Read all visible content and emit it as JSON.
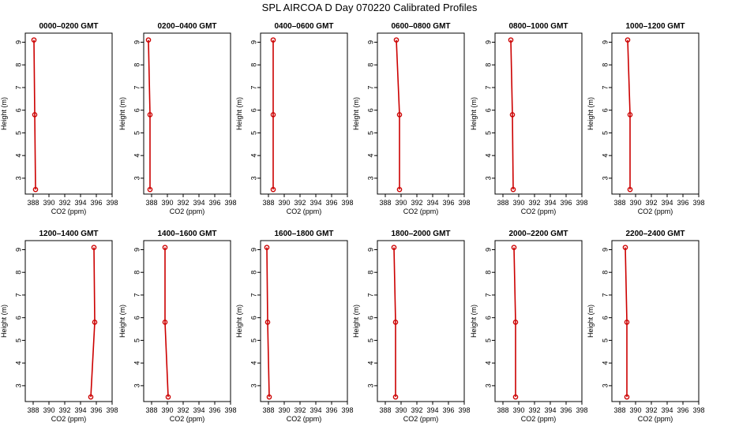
{
  "title": "SPL AIRCOA D  Day 070220  Calibrated Profiles",
  "xlabel": "CO2 (ppm)",
  "ylabel": "Height (m)",
  "colors": {
    "line": "#cc0000",
    "marker": "#cc0000"
  },
  "chart_data": [
    {
      "type": "line",
      "title": "0000–0200 GMT",
      "xlim": [
        387,
        398
      ],
      "ylim": [
        2.3,
        9.4
      ],
      "xticks": [
        "388",
        "390",
        "392",
        "394",
        "396",
        "398"
      ],
      "yticks": [
        "3",
        "4",
        "5",
        "6",
        "7",
        "8",
        "9"
      ],
      "points": [
        {
          "x": 388.3,
          "y": 2.5
        },
        {
          "x": 388.2,
          "y": 5.8
        },
        {
          "x": 388.1,
          "y": 9.1
        }
      ]
    },
    {
      "type": "line",
      "title": "0200–0400 GMT",
      "xlim": [
        387,
        398
      ],
      "ylim": [
        2.3,
        9.4
      ],
      "xticks": [
        "388",
        "390",
        "392",
        "394",
        "396",
        "398"
      ],
      "yticks": [
        "3",
        "4",
        "5",
        "6",
        "7",
        "8",
        "9"
      ],
      "points": [
        {
          "x": 387.8,
          "y": 2.5
        },
        {
          "x": 387.8,
          "y": 5.8
        },
        {
          "x": 387.6,
          "y": 9.1
        }
      ]
    },
    {
      "type": "line",
      "title": "0400–0600 GMT",
      "xlim": [
        387,
        398
      ],
      "ylim": [
        2.3,
        9.4
      ],
      "xticks": [
        "388",
        "390",
        "392",
        "394",
        "396",
        "398"
      ],
      "yticks": [
        "3",
        "4",
        "5",
        "6",
        "7",
        "8",
        "9"
      ],
      "points": [
        {
          "x": 388.6,
          "y": 2.5
        },
        {
          "x": 388.6,
          "y": 5.8
        },
        {
          "x": 388.6,
          "y": 9.1
        }
      ]
    },
    {
      "type": "line",
      "title": "0600–0800 GMT",
      "xlim": [
        387,
        398
      ],
      "ylim": [
        2.3,
        9.4
      ],
      "xticks": [
        "388",
        "390",
        "392",
        "394",
        "396",
        "398"
      ],
      "yticks": [
        "3",
        "4",
        "5",
        "6",
        "7",
        "8",
        "9"
      ],
      "points": [
        {
          "x": 389.8,
          "y": 2.5
        },
        {
          "x": 389.8,
          "y": 5.8
        },
        {
          "x": 389.4,
          "y": 9.1
        }
      ]
    },
    {
      "type": "line",
      "title": "0800–1000 GMT",
      "xlim": [
        387,
        398
      ],
      "ylim": [
        2.3,
        9.4
      ],
      "xticks": [
        "388",
        "390",
        "392",
        "394",
        "396",
        "398"
      ],
      "yticks": [
        "3",
        "4",
        "5",
        "6",
        "7",
        "8",
        "9"
      ],
      "points": [
        {
          "x": 389.3,
          "y": 2.5
        },
        {
          "x": 389.2,
          "y": 5.8
        },
        {
          "x": 389.0,
          "y": 9.1
        }
      ]
    },
    {
      "type": "line",
      "title": "1000–1200 GMT",
      "xlim": [
        387,
        398
      ],
      "ylim": [
        2.3,
        9.4
      ],
      "xticks": [
        "388",
        "390",
        "392",
        "394",
        "396",
        "398"
      ],
      "yticks": [
        "3",
        "4",
        "5",
        "6",
        "7",
        "8",
        "9"
      ],
      "points": [
        {
          "x": 389.3,
          "y": 2.5
        },
        {
          "x": 389.3,
          "y": 5.8
        },
        {
          "x": 389.0,
          "y": 9.1
        }
      ]
    },
    {
      "type": "line",
      "title": "1200–1400 GMT",
      "xlim": [
        387,
        398
      ],
      "ylim": [
        2.3,
        9.4
      ],
      "xticks": [
        "388",
        "390",
        "392",
        "394",
        "396",
        "398"
      ],
      "yticks": [
        "3",
        "4",
        "5",
        "6",
        "7",
        "8",
        "9"
      ],
      "points": [
        {
          "x": 395.3,
          "y": 2.5
        },
        {
          "x": 395.8,
          "y": 5.8
        },
        {
          "x": 395.7,
          "y": 9.1
        }
      ]
    },
    {
      "type": "line",
      "title": "1400–1600 GMT",
      "xlim": [
        387,
        398
      ],
      "ylim": [
        2.3,
        9.4
      ],
      "xticks": [
        "388",
        "390",
        "392",
        "394",
        "396",
        "398"
      ],
      "yticks": [
        "3",
        "4",
        "5",
        "6",
        "7",
        "8",
        "9"
      ],
      "points": [
        {
          "x": 390.1,
          "y": 2.5
        },
        {
          "x": 389.7,
          "y": 5.8
        },
        {
          "x": 389.7,
          "y": 9.1
        }
      ]
    },
    {
      "type": "line",
      "title": "1600–1800 GMT",
      "xlim": [
        387,
        398
      ],
      "ylim": [
        2.3,
        9.4
      ],
      "xticks": [
        "388",
        "390",
        "392",
        "394",
        "396",
        "398"
      ],
      "yticks": [
        "3",
        "4",
        "5",
        "6",
        "7",
        "8",
        "9"
      ],
      "points": [
        {
          "x": 388.1,
          "y": 2.5
        },
        {
          "x": 387.9,
          "y": 5.8
        },
        {
          "x": 387.8,
          "y": 9.1
        }
      ]
    },
    {
      "type": "line",
      "title": "1800–2000 GMT",
      "xlim": [
        387,
        398
      ],
      "ylim": [
        2.3,
        9.4
      ],
      "xticks": [
        "388",
        "390",
        "392",
        "394",
        "396",
        "398"
      ],
      "yticks": [
        "3",
        "4",
        "5",
        "6",
        "7",
        "8",
        "9"
      ],
      "points": [
        {
          "x": 389.3,
          "y": 2.5
        },
        {
          "x": 389.3,
          "y": 5.8
        },
        {
          "x": 389.1,
          "y": 9.1
        }
      ]
    },
    {
      "type": "line",
      "title": "2000–2200 GMT",
      "xlim": [
        387,
        398
      ],
      "ylim": [
        2.3,
        9.4
      ],
      "xticks": [
        "388",
        "390",
        "392",
        "394",
        "396",
        "398"
      ],
      "yticks": [
        "3",
        "4",
        "5",
        "6",
        "7",
        "8",
        "9"
      ],
      "points": [
        {
          "x": 389.6,
          "y": 2.5
        },
        {
          "x": 389.6,
          "y": 5.8
        },
        {
          "x": 389.4,
          "y": 9.1
        }
      ]
    },
    {
      "type": "line",
      "title": "2200–2400 GMT",
      "xlim": [
        387,
        398
      ],
      "ylim": [
        2.3,
        9.4
      ],
      "xticks": [
        "388",
        "390",
        "392",
        "394",
        "396",
        "398"
      ],
      "yticks": [
        "3",
        "4",
        "5",
        "6",
        "7",
        "8",
        "9"
      ],
      "points": [
        {
          "x": 388.9,
          "y": 2.5
        },
        {
          "x": 388.9,
          "y": 5.8
        },
        {
          "x": 388.7,
          "y": 9.1
        }
      ]
    }
  ]
}
